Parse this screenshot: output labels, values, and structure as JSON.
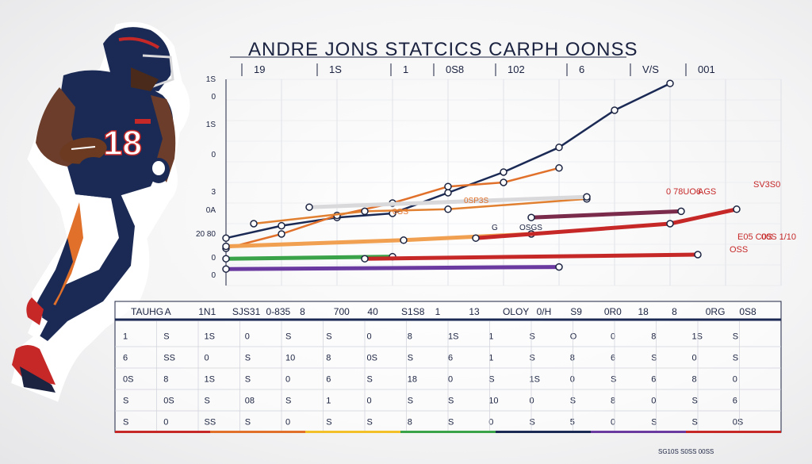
{
  "chart_data": {
    "type": "line",
    "title": "ANDRE JONS STATCICS CARPH OONSS",
    "header_labels": [
      "19",
      "1S",
      "1",
      "0S8",
      "102",
      "6",
      "V/S",
      "001"
    ],
    "y_ticks": [
      "1S",
      "0",
      "1S",
      "0",
      "3",
      "0A",
      "20 80",
      "0",
      "0"
    ],
    "series": [
      {
        "color": "#1b2a55",
        "values": [
          [
            0,
            2.3
          ],
          [
            1,
            2.9
          ],
          [
            2,
            3.3
          ],
          [
            3,
            3.5
          ],
          [
            4,
            4.5
          ],
          [
            5,
            5.5
          ],
          [
            6,
            6.7
          ],
          [
            7,
            8.5
          ],
          [
            8,
            9.8
          ]
        ]
      },
      {
        "color": "#e0702a",
        "values": [
          [
            0,
            1.8
          ],
          [
            1,
            2.5
          ],
          [
            2,
            3.4
          ],
          [
            3,
            4.0
          ],
          [
            4,
            4.8
          ],
          [
            5,
            5.0
          ],
          [
            6,
            5.7
          ]
        ]
      },
      {
        "color": "#e08030",
        "values": [
          [
            0.5,
            3.0
          ],
          [
            2.5,
            3.6
          ],
          [
            4,
            3.7
          ],
          [
            6.5,
            4.2
          ]
        ]
      },
      {
        "color": "#d9d9dc",
        "values": [
          [
            1.5,
            3.8
          ],
          [
            6.5,
            4.3
          ]
        ]
      },
      {
        "color": "#f0a050",
        "values": [
          [
            0,
            1.9
          ],
          [
            3.2,
            2.2
          ],
          [
            5.5,
            2.5
          ]
        ]
      },
      {
        "color": "#c62828",
        "values": [
          [
            4.5,
            2.3
          ],
          [
            8,
            3.0
          ],
          [
            9.2,
            3.7
          ]
        ]
      },
      {
        "color": "#7a2a4a",
        "values": [
          [
            5.5,
            3.3
          ],
          [
            8.2,
            3.6
          ]
        ]
      },
      {
        "color": "#3aa34a",
        "values": [
          [
            0,
            1.3
          ],
          [
            3,
            1.4
          ]
        ]
      },
      {
        "color": "#6a3aa0",
        "values": [
          [
            0,
            0.8
          ],
          [
            6,
            0.9
          ]
        ]
      },
      {
        "color": "#c62828",
        "values": [
          [
            2.5,
            1.3
          ],
          [
            8.5,
            1.5
          ]
        ]
      }
    ],
    "annotations": [
      "SV3S0",
      "0SP3S",
      "OSGS",
      "0GS",
      "0 78UO6",
      "AGS",
      "E05 C0S",
      "G",
      "00S 1/10",
      "OSS"
    ],
    "table": {
      "headers": [
        "TAUHG",
        "A",
        "1N1",
        "SJS31",
        "0-835",
        "8",
        "700",
        "40",
        "S1S8",
        "1",
        "13",
        "OLOY",
        "0/H",
        "S9",
        "0R0",
        "18",
        "8",
        "0RG",
        "0S8"
      ],
      "rows": [
        [
          "1",
          "S",
          "1S",
          "0",
          "S",
          "S",
          "0",
          "8",
          "1S",
          "1",
          "S",
          "O",
          "0",
          "8",
          "1S",
          "S"
        ],
        [
          "6",
          "SS",
          "0",
          "S",
          "10",
          "8",
          "0S",
          "S",
          "6",
          "1",
          "S",
          "8",
          "6",
          "S",
          "0",
          "S"
        ],
        [
          "0S",
          "8",
          "1S",
          "S",
          "0",
          "6",
          "S",
          "18",
          "0",
          "S",
          "1S",
          "0",
          "S",
          "6",
          "8",
          "0"
        ],
        [
          "S",
          "0S",
          "S",
          "08",
          "S",
          "1",
          "0",
          "S",
          "S",
          "10",
          "0",
          "S",
          "8",
          "0",
          "S",
          "6"
        ],
        [
          "S",
          "0",
          "SS",
          "S",
          "0",
          "S",
          "S",
          "8",
          "S",
          "0",
          "S",
          "5",
          "0",
          "S",
          "S",
          "0S"
        ]
      ]
    },
    "footer": "SG10S S0SS 00SS"
  }
}
